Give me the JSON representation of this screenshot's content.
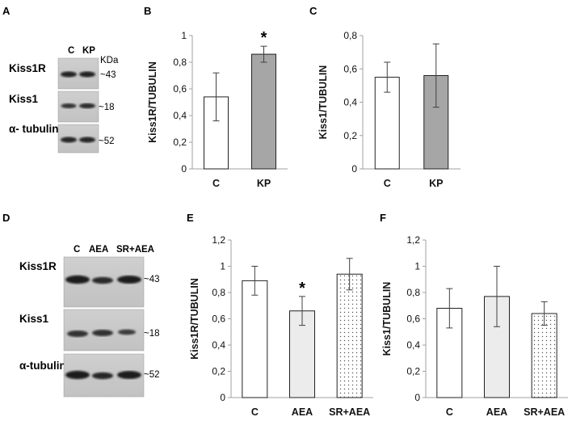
{
  "panel_letters": [
    "A",
    "B",
    "C",
    "D",
    "E",
    "F"
  ],
  "blot_a": {
    "lanes": [
      "C",
      "KP"
    ],
    "unit": "KDa",
    "rows": [
      {
        "protein": "Kiss1R",
        "size": "~43"
      },
      {
        "protein": "Kiss1",
        "size": "~18"
      },
      {
        "protein": "α- tubulin",
        "size": "~52"
      }
    ]
  },
  "blot_d": {
    "lanes": [
      "C",
      "AEA",
      "SR+AEA"
    ],
    "rows": [
      {
        "protein": "Kiss1R",
        "size": "~43"
      },
      {
        "protein": "Kiss1",
        "size": "~18"
      },
      {
        "protein": "α-tubulin",
        "size": "~52"
      }
    ]
  },
  "colors": {
    "control": "#ffffff",
    "kp": "#a6a6a6",
    "aea": "#ececec",
    "sr_aea_dots": "#555555",
    "axis": "#a0a0a0",
    "error_bar": "#404040"
  },
  "chart_data": [
    {
      "panel": "B",
      "type": "bar",
      "ylabel": "Kiss1R/TUBULIN",
      "categories": [
        "C",
        "KP"
      ],
      "values": [
        0.54,
        0.86
      ],
      "errors": [
        0.18,
        0.06
      ],
      "significance": [
        "",
        "*"
      ],
      "yticks": [
        "0",
        "0,2",
        "0,4",
        "0,6",
        "0,8",
        "1"
      ],
      "ylim": [
        0,
        1
      ]
    },
    {
      "panel": "C",
      "type": "bar",
      "ylabel": "Kiss1/TUBULIN",
      "categories": [
        "C",
        "KP"
      ],
      "values": [
        0.55,
        0.56
      ],
      "errors": [
        0.09,
        0.19
      ],
      "significance": [
        "",
        ""
      ],
      "yticks": [
        "0",
        "0,2",
        "0,4",
        "0,6",
        "0,8"
      ],
      "ylim": [
        0,
        0.8
      ]
    },
    {
      "panel": "E",
      "type": "bar",
      "ylabel": "Kiss1R/TUBULIN",
      "categories": [
        "C",
        "AEA",
        "SR+AEA"
      ],
      "values": [
        0.89,
        0.66,
        0.94
      ],
      "errors": [
        0.11,
        0.11,
        0.12
      ],
      "significance": [
        "",
        "*",
        ""
      ],
      "yticks": [
        "0",
        "0,2",
        "0,4",
        "0,6",
        "0,8",
        "1",
        "1,2"
      ],
      "ylim": [
        0,
        1.2
      ]
    },
    {
      "panel": "F",
      "type": "bar",
      "ylabel": "Kiss1/TUBULIN",
      "categories": [
        "C",
        "AEA",
        "SR+AEA"
      ],
      "values": [
        0.68,
        0.77,
        0.64
      ],
      "errors": [
        0.15,
        0.23,
        0.09
      ],
      "significance": [
        "",
        "",
        ""
      ],
      "yticks": [
        "0",
        "0,2",
        "0,4",
        "0,6",
        "0,8",
        "1",
        "1,2"
      ],
      "ylim": [
        0,
        1.2
      ]
    }
  ]
}
